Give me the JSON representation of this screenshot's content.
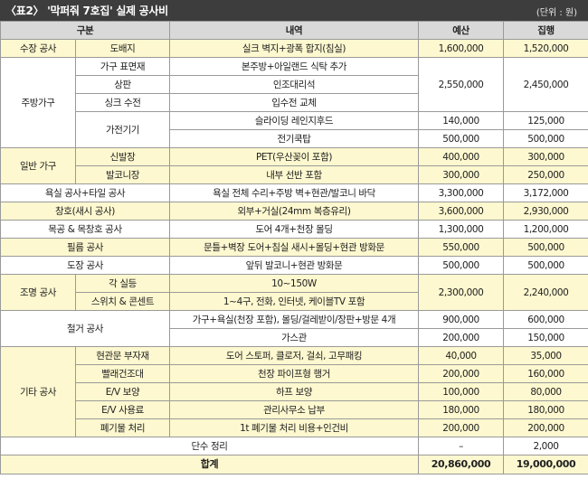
{
  "header": {
    "title": "〈표2〉 '막퍼줘 7호집' 실제 공사비",
    "unit": "(단위 : 원)"
  },
  "columns": {
    "category": "구분",
    "detail": "내역",
    "budget": "예산",
    "execution": "집행"
  },
  "rows": {
    "r01": {
      "cat": "수장 공사",
      "sub": "도배지",
      "detail": "실크 벽지+광폭 합지(침실)",
      "budget": "1,600,000",
      "exec": "1,520,000"
    },
    "r02": {
      "cat": "주방가구",
      "sub": "가구 표면재",
      "detail": "본주방+아일랜드 식탁 추가",
      "budget": "2,550,000",
      "exec": "2,450,000"
    },
    "r03": {
      "sub": "상판",
      "detail": "인조대리석"
    },
    "r04": {
      "sub": "싱크 수전",
      "detail": "입수전 교체"
    },
    "r05": {
      "sub": "가전기기",
      "detail": "슬라이딩 레인지후드",
      "budget": "140,000",
      "exec": "125,000"
    },
    "r06": {
      "detail": "전기쿡탑",
      "budget": "500,000",
      "exec": "500,000"
    },
    "r07": {
      "cat": "일반 가구",
      "sub": "신발장",
      "detail": "PET(우산꽂이 포함)",
      "budget": "400,000",
      "exec": "300,000"
    },
    "r08": {
      "sub": "발코니장",
      "detail": "내부 선반 포함",
      "budget": "300,000",
      "exec": "250,000"
    },
    "r09": {
      "cat": "욕실 공사+타일 공사",
      "detail": "욕실 전체 수리+주방 벽+현관/발코니 바닥",
      "budget": "3,300,000",
      "exec": "3,172,000"
    },
    "r10": {
      "cat": "창호(새시 공사)",
      "detail": "외부+거실(24mm 복층유리)",
      "budget": "3,600,000",
      "exec": "2,930,000"
    },
    "r11": {
      "cat": "목공 & 목창호 공사",
      "detail": "도어 4개+천장 몰딩",
      "budget": "1,300,000",
      "exec": "1,200,000"
    },
    "r12": {
      "cat": "필름 공사",
      "detail": "문틀+벽장 도어+침실 새시+몰딩+현관 방화문",
      "budget": "550,000",
      "exec": "500,000"
    },
    "r13": {
      "cat": "도장 공사",
      "detail": "앞뒤 발코니+현관 방화문",
      "budget": "500,000",
      "exec": "500,000"
    },
    "r14": {
      "cat": "조명 공사",
      "sub": "각 실등",
      "detail": "10~150W",
      "budget": "2,300,000",
      "exec": "2,240,000"
    },
    "r15": {
      "sub": "스위치 & 콘센트",
      "detail": "1~4구, 전화, 인터넷, 케이블TV 포함"
    },
    "r16": {
      "cat": "철거 공사",
      "detail": "가구+욕실(천장 포함), 몰딩/걸레받이/장판+방문 4개",
      "budget": "900,000",
      "exec": "600,000"
    },
    "r17": {
      "detail": "가스관",
      "budget": "200,000",
      "exec": "150,000"
    },
    "r18": {
      "cat": "기타 공사",
      "sub": "현관문 부자재",
      "detail": "도어 스토퍼, 클로저, 걸쇠, 고무패킹",
      "budget": "40,000",
      "exec": "35,000"
    },
    "r19": {
      "sub": "빨래건조대",
      "detail": "천장 파이프형 행거",
      "budget": "200,000",
      "exec": "160,000"
    },
    "r20": {
      "sub": "E/V 보양",
      "detail": "하프 보양",
      "budget": "100,000",
      "exec": "80,000"
    },
    "r21": {
      "sub": "E/V 사용료",
      "detail": "관리사무소 납부",
      "budget": "180,000",
      "exec": "180,000"
    },
    "r22": {
      "sub": "폐기물 처리",
      "detail": "1t 폐기물 처리 비용+인건비",
      "budget": "200,000",
      "exec": "200,000"
    },
    "r23": {
      "cat": "단수 정리",
      "budget": "–",
      "exec": "2,000"
    }
  },
  "total": {
    "label": "합계",
    "budget": "20,860,000",
    "exec": "19,000,000"
  },
  "colors": {
    "header_bg": "#3d3d3d",
    "highlight": "#fdf8cf",
    "column_header_bg": "#d9d9d9",
    "border": "#9a9a9a"
  }
}
